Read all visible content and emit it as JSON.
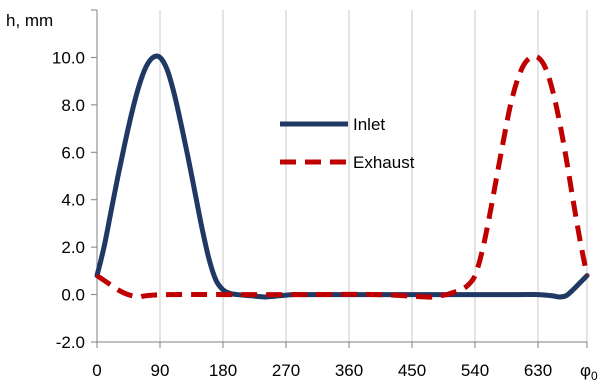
{
  "chart_data": {
    "type": "line",
    "title": "",
    "ylabel": "h, mm",
    "xlabel": "φ",
    "xlabel_sub": "0",
    "xlim": [
      0,
      700
    ],
    "ylim": [
      -2,
      12
    ],
    "x_ticks": [
      0,
      90,
      180,
      270,
      360,
      450,
      540,
      630
    ],
    "x_tick_labels": [
      "0",
      "90",
      "180",
      "270",
      "360",
      "450",
      "540",
      "630"
    ],
    "y_ticks": [
      -2,
      0,
      2,
      4,
      6,
      8,
      10
    ],
    "y_tick_labels": [
      "-2.0",
      "0.0",
      "2.0",
      "4.0",
      "6.0",
      "8.0",
      "10.0"
    ],
    "grid": {
      "vertical": true,
      "horizontal": false
    },
    "legend_position": "center",
    "series": [
      {
        "name": "Inlet",
        "color": "#1f3864",
        "dash": "solid",
        "x": [
          0,
          10,
          20,
          30,
          40,
          50,
          60,
          70,
          80,
          90,
          100,
          110,
          120,
          130,
          140,
          150,
          160,
          170,
          180,
          190,
          200,
          220,
          240,
          260,
          280,
          300,
          400,
          500,
          600,
          630,
          650,
          660,
          670,
          680,
          690,
          700
        ],
        "y": [
          0.8,
          2.0,
          3.5,
          5.0,
          6.4,
          7.7,
          8.8,
          9.6,
          10.0,
          10.0,
          9.5,
          8.5,
          7.2,
          5.8,
          4.3,
          2.8,
          1.5,
          0.6,
          0.2,
          0.05,
          0.0,
          -0.05,
          -0.1,
          -0.05,
          0.0,
          0.0,
          0.0,
          0.0,
          0.0,
          0.0,
          -0.05,
          -0.1,
          -0.05,
          0.2,
          0.5,
          0.8
        ]
      },
      {
        "name": "Exhaust",
        "color": "#c00000",
        "dash": "dashed",
        "x": [
          0,
          10,
          20,
          30,
          40,
          50,
          60,
          70,
          100,
          200,
          300,
          400,
          470,
          480,
          490,
          500,
          510,
          520,
          530,
          540,
          550,
          560,
          570,
          580,
          590,
          600,
          610,
          620,
          630,
          640,
          650,
          660,
          670,
          680,
          690,
          700
        ],
        "y": [
          0.8,
          0.6,
          0.4,
          0.2,
          0.05,
          -0.05,
          -0.1,
          -0.05,
          0.0,
          0.0,
          0.0,
          0.0,
          -0.1,
          -0.1,
          -0.05,
          0.0,
          0.1,
          0.2,
          0.4,
          0.8,
          1.8,
          3.2,
          4.8,
          6.4,
          7.9,
          9.0,
          9.7,
          10.0,
          10.0,
          9.6,
          8.7,
          7.4,
          5.8,
          4.0,
          2.3,
          0.8
        ]
      }
    ]
  }
}
